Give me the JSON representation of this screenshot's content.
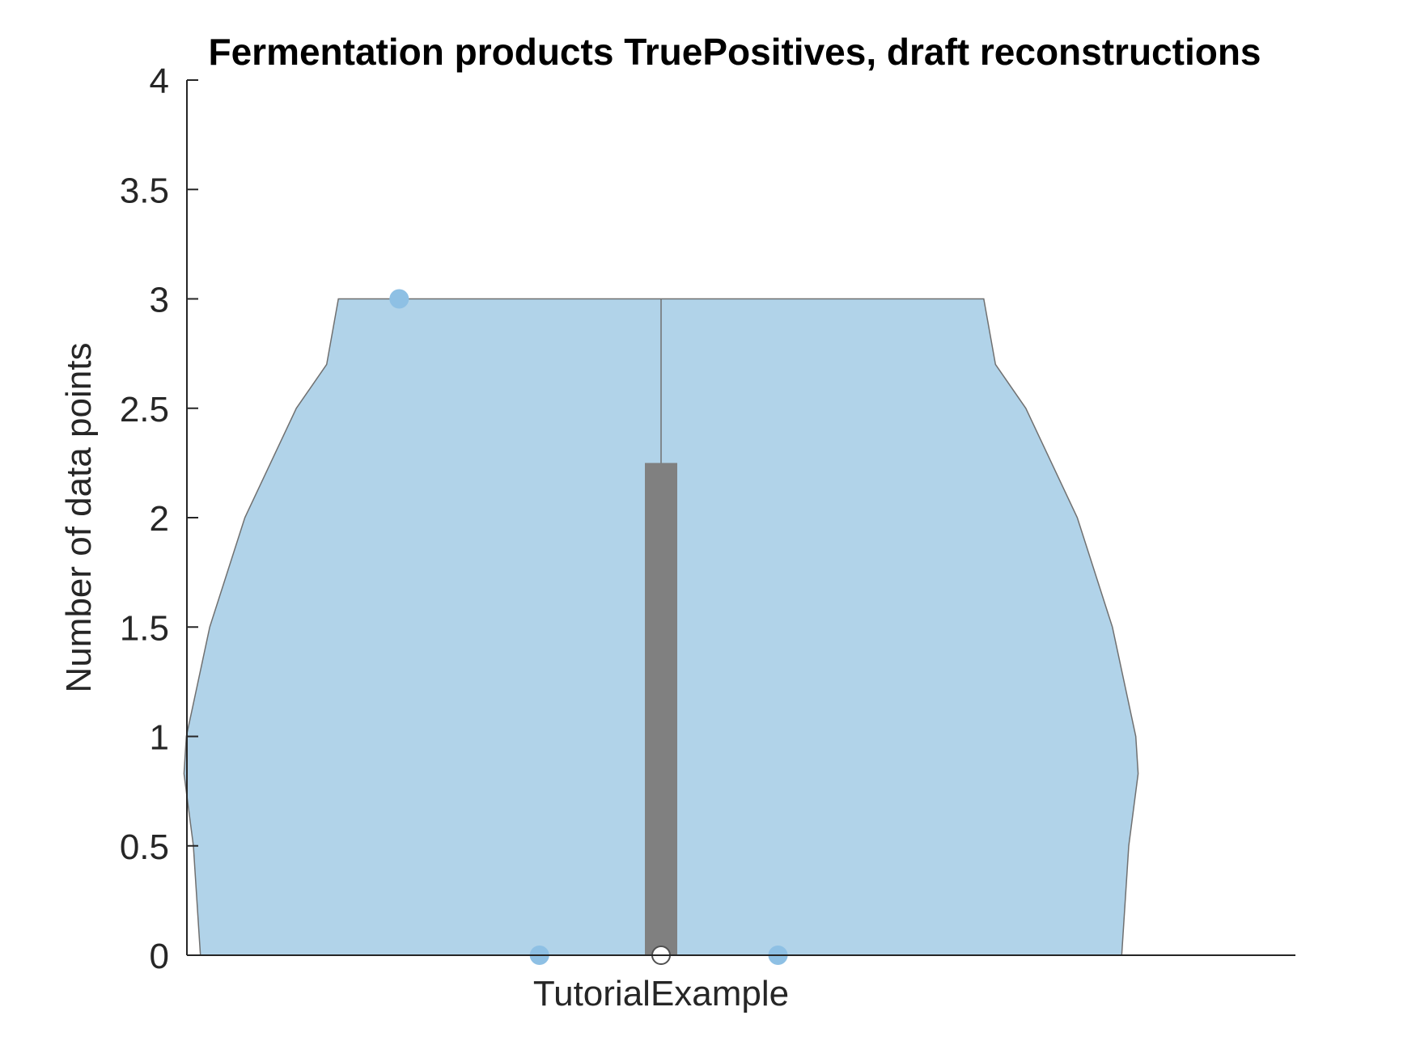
{
  "chart_data": {
    "type": "violin",
    "title": "Fermentation products TruePositives, draft reconstructions",
    "xlabel": "",
    "ylabel": "Number of data points",
    "categories": [
      "TutorialExample"
    ],
    "ylim": [
      0,
      4
    ],
    "yticks": [
      0,
      0.5,
      1,
      1.5,
      2,
      2.5,
      3,
      3.5,
      4
    ],
    "ytick_labels": [
      "0",
      "0.5",
      "1",
      "1.5",
      "2",
      "2.5",
      "3",
      "3.5",
      "4"
    ],
    "points": [
      3,
      0,
      0
    ],
    "box": {
      "q1": 0,
      "q3": 2.25,
      "median": 0,
      "whisker_low": 0,
      "whisker_high": 3
    },
    "violin_half_width": [
      [
        0,
        0.985
      ],
      [
        0.5,
        1.0
      ],
      [
        0.83,
        1.02
      ],
      [
        1.0,
        1.015
      ],
      [
        1.5,
        0.965
      ],
      [
        2.0,
        0.89
      ],
      [
        2.5,
        0.78
      ],
      [
        2.7,
        0.715
      ],
      [
        3.0,
        0.69
      ]
    ],
    "grid": false,
    "colors": {
      "violin_fill": "#b1d3e9",
      "violin_edge": "#707070",
      "points": "#8ec0e4",
      "box": "#808080",
      "median": "#ffffff",
      "axis": "#262626"
    }
  }
}
